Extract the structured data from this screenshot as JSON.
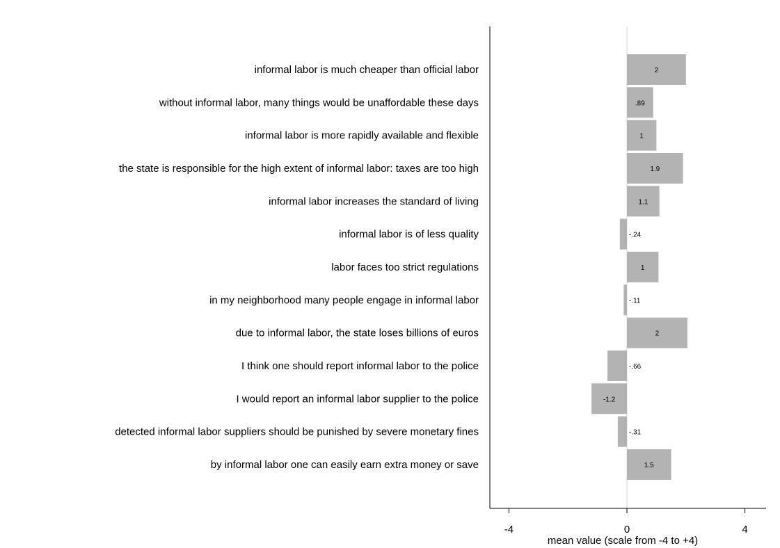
{
  "chart_data": {
    "type": "bar",
    "orientation": "horizontal",
    "categories": [
      "informal labor is much cheaper than official labor",
      "without informal labor, many things would be unaffordable these days",
      "informal labor is more rapidly available and flexible",
      "the state is responsible for the high extent of informal labor: taxes are too high",
      "informal labor increases the standard of living",
      "informal labor is of less quality",
      "labor faces too strict regulations",
      "in my neighborhood many people engage in informal labor",
      "due to informal labor, the state loses billions of euros",
      "I think one should report informal labor to the police",
      "I would report an informal labor supplier to the police",
      "detected informal labor suppliers should be punished by severe monetary fines",
      "by informal labor one can easily earn extra money or save"
    ],
    "values": [
      2.0,
      0.89,
      1.0,
      1.9,
      1.1,
      -0.24,
      1.07,
      -0.11,
      2.05,
      -0.66,
      -1.2,
      -0.31,
      1.5
    ],
    "data_labels": [
      "2",
      ".89",
      "1",
      "1.9",
      "1.1",
      "-.24",
      "1",
      "-.11",
      "2",
      "-.66",
      "-1.2",
      "-.31",
      "1.5"
    ],
    "xlabel": "mean value (scale from -4 to +4)",
    "ylabel": "",
    "xlim": [
      -4,
      4
    ],
    "xticks": [
      -4,
      0,
      4
    ],
    "xtick_labels": [
      "-4",
      "0",
      "4"
    ],
    "grid": false,
    "bar_color": "#b3b3b3",
    "zero_line_color": "#e6e6e6"
  }
}
